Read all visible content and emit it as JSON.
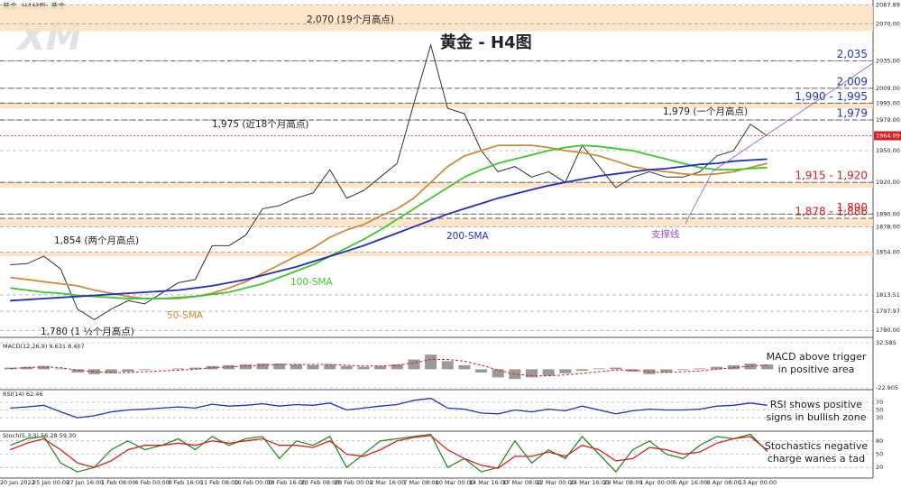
{
  "chart_data": [
    {
      "type": "line",
      "header": "黄金, H4分析: 黄金",
      "logo": "XM",
      "title": "黄金 - H4图",
      "categories": [
        "20 Jan 2022",
        null,
        "25 Jan 00:00",
        null,
        "27 Jan 16:00",
        null,
        "1 Feb 08:00",
        null,
        "4 Feb 00:00",
        null,
        "8 Feb 16:00",
        null,
        "11 Feb 08:00",
        null,
        "16 Feb 00:00",
        null,
        "18 Feb 16:00",
        null,
        "23 Feb 08:00",
        null,
        "28 Feb 00:00",
        null,
        "2 Mar 16:00",
        null,
        "7 Mar 08:00",
        null,
        "10 Mar 00:00",
        null,
        "14 Mar 16:00",
        null,
        "17 Mar 08:00",
        null,
        "22 Mar 00:00",
        null,
        "24 Mar 16:00",
        null,
        "29 Mar 08:00",
        null,
        "1 Apr 00:00",
        null,
        "5 Apr 16:00",
        null,
        "8 Apr 08:00",
        null,
        "13 Apr 00:00",
        null
      ],
      "series": [
        {
          "color": "#333333",
          "values": [
            1842,
            1843,
            1850,
            1838,
            1800,
            1790,
            1800,
            1808,
            1805,
            1815,
            1825,
            1828,
            1860,
            1860,
            1870,
            1895,
            1898,
            1905,
            1910,
            1932,
            1905,
            1912,
            1925,
            1938,
            1995,
            2050,
            1990,
            1985,
            1950,
            1930,
            1935,
            1925,
            1930,
            1920,
            1955,
            1935,
            1915,
            1925,
            1930,
            1925,
            1925,
            1930,
            1945,
            1950,
            1975,
            1964
          ]
        },
        {
          "name": "50-SMA",
          "color": "#d08a3a",
          "values": [
            1830,
            1828,
            1826,
            1824,
            1822,
            1818,
            1815,
            1812,
            1810,
            1810,
            1810,
            1812,
            1815,
            1820,
            1826,
            1834,
            1842,
            1850,
            1858,
            1868,
            1875,
            1880,
            1888,
            1895,
            1905,
            1920,
            1935,
            1945,
            1950,
            1955,
            1955,
            1955,
            1953,
            1950,
            1948,
            1945,
            1940,
            1935,
            1932,
            1930,
            1928,
            1927,
            1928,
            1930,
            1934,
            1938
          ]
        },
        {
          "name": "100-SMA",
          "color": "#3fc72e",
          "values": [
            1820,
            1818,
            1816,
            1815,
            1813,
            1812,
            1811,
            1810,
            1810,
            1810,
            1811,
            1812,
            1814,
            1816,
            1820,
            1824,
            1830,
            1836,
            1842,
            1850,
            1858,
            1866,
            1875,
            1885,
            1895,
            1905,
            1915,
            1925,
            1932,
            1938,
            1942,
            1946,
            1950,
            1953,
            1955,
            1954,
            1952,
            1950,
            1946,
            1942,
            1938,
            1934,
            1932,
            1932,
            1933,
            1934
          ]
        },
        {
          "name": "200-SMA",
          "color": "#1f2fbf",
          "values": [
            1808,
            1809,
            1810,
            1811,
            1812,
            1813,
            1814,
            1815,
            1816,
            1817,
            1818,
            1820,
            1822,
            1825,
            1828,
            1832,
            1836,
            1840,
            1845,
            1850,
            1855,
            1860,
            1866,
            1872,
            1878,
            1884,
            1890,
            1895,
            1900,
            1905,
            1909,
            1913,
            1917,
            1920,
            1923,
            1926,
            1928,
            1930,
            1932,
            1933,
            1935,
            1937,
            1938,
            1940,
            1941,
            1942
          ]
        }
      ],
      "ylim": [
        1775,
        2090
      ],
      "yticks": [
        2087.89,
        {
          "value": 2070,
          "label": "2070.00"
        },
        {
          "value": 2035,
          "label": "2035.00"
        },
        {
          "value": 2009,
          "label": "2009.00"
        },
        {
          "value": 1995,
          "label": "1995.00"
        },
        {
          "value": 1979,
          "label": "1979.00"
        },
        {
          "value": 1950,
          "label": "1950.00"
        },
        {
          "value": 1920,
          "label": "1920.00"
        },
        {
          "value": 1890,
          "label": "1890.00"
        },
        {
          "value": 1878,
          "label": "1878.00"
        },
        {
          "value": 1854,
          "label": "1854.00"
        },
        1813.51,
        1797.97,
        {
          "value": 1780,
          "label": "1780.00"
        }
      ],
      "last": {
        "value": 1964.09,
        "label": "1964.09"
      },
      "zones": [
        [
          2063,
          2087
        ],
        [
          1990,
          1995
        ],
        [
          1915,
          1920
        ],
        [
          1878,
          1886
        ],
        [
          1850,
          1854
        ]
      ],
      "levels": [
        {
          "label": "2,035",
          "value": 2035,
          "color": "#2233cc"
        },
        {
          "label": "2,009",
          "value": 2009,
          "color": "#2233cc"
        },
        {
          "label": "1,990 - 1,995",
          "low": 1990,
          "high": 1995,
          "color": "#2233cc"
        },
        {
          "label": "1,979",
          "value": 1979,
          "color": "#2233cc"
        },
        {
          "label": "1,915 - 1,920",
          "low": 1915,
          "high": 1920,
          "color": "#d62020"
        },
        {
          "label": "1,890",
          "value": 1890,
          "color": "#d62020"
        },
        {
          "label": "1,878 - 1,886",
          "low": 1878,
          "high": 1886,
          "color": "#d62020"
        }
      ],
      "annotations": [
        {
          "text": "2,070 (19个月高点)",
          "color": "#222222"
        },
        {
          "text": "1,975 (近18个月高点)",
          "color": "#222222"
        },
        {
          "text": "1,979 (一个月高点)",
          "color": "#222222"
        },
        {
          "text": "1,854 (两个月高点)",
          "color": "#222222"
        },
        {
          "text": "1,780 (1 ½个月高点)",
          "color": "#222222"
        },
        {
          "text": "200-SMA",
          "color": "#1f2fbf"
        },
        {
          "text": "100-SMA",
          "color": "#3fc72e"
        },
        {
          "text": "50-SMA",
          "color": "#d08a3a"
        },
        {
          "text": "支撑线",
          "color": "#9a55c8"
        }
      ]
    },
    {
      "type": "bar",
      "label": "MACD(12,26,9) 9.631 8.407",
      "comment": [
        "MACD above trigger",
        "in positive area"
      ],
      "ylim": [
        -22.905,
        32.585
      ],
      "yticks": [
        32.585,
        -22.905
      ],
      "series": [
        {
          "color": "#999999",
          "values": [
            2,
            3,
            4,
            1,
            -4,
            -6,
            -5,
            -3,
            -1,
            0,
            1,
            2,
            4,
            5,
            6,
            7,
            7,
            6,
            5,
            6,
            4,
            3,
            4,
            6,
            12,
            18,
            10,
            5,
            -4,
            -10,
            -12,
            -10,
            -8,
            -5,
            -2,
            1,
            2,
            -3,
            -6,
            -4,
            -1,
            1,
            3,
            5,
            7,
            6
          ]
        },
        {
          "color": "#d62020",
          "values": [
            1,
            2,
            3,
            2,
            -1,
            -3,
            -4,
            -4,
            -3,
            -2,
            -1,
            0,
            2,
            3,
            4,
            5,
            6,
            6,
            6,
            6,
            5,
            4,
            4,
            5,
            8,
            12,
            12,
            10,
            5,
            -1,
            -6,
            -8,
            -8,
            -7,
            -5,
            -3,
            -1,
            -1,
            -3,
            -4,
            -3,
            -2,
            0,
            2,
            4,
            5
          ]
        }
      ]
    },
    {
      "type": "line",
      "label": "RSI(14) 62.46",
      "comment": [
        "RSI shows positive",
        "signs in bullish zone"
      ],
      "ylim": [
        0,
        100
      ],
      "yticks": [
        70,
        50,
        30
      ],
      "series": [
        {
          "color": "#1f2fbf",
          "values": [
            55,
            58,
            62,
            45,
            30,
            35,
            45,
            50,
            52,
            55,
            58,
            55,
            65,
            60,
            62,
            66,
            60,
            64,
            62,
            68,
            50,
            55,
            60,
            64,
            75,
            80,
            55,
            52,
            42,
            40,
            50,
            45,
            52,
            48,
            60,
            50,
            40,
            48,
            52,
            50,
            50,
            52,
            60,
            62,
            68,
            62
          ]
        }
      ]
    },
    {
      "type": "line",
      "label": "Stoch(5,3,3) 56.28 59.30",
      "comment": [
        "Stochastics negative",
        "charge wanes a tad"
      ],
      "ylim": [
        0,
        100
      ],
      "yticks": [
        80,
        50,
        20
      ],
      "series": [
        {
          "color": "#2a8a2a",
          "values": [
            70,
            85,
            90,
            30,
            10,
            20,
            60,
            80,
            60,
            70,
            85,
            60,
            90,
            70,
            85,
            90,
            40,
            80,
            70,
            90,
            20,
            50,
            80,
            85,
            90,
            95,
            20,
            40,
            10,
            20,
            80,
            30,
            60,
            40,
            90,
            50,
            10,
            60,
            80,
            50,
            40,
            70,
            90,
            85,
            95,
            56
          ]
        },
        {
          "color": "#d62020",
          "values": [
            60,
            75,
            85,
            60,
            30,
            20,
            35,
            60,
            70,
            70,
            75,
            70,
            80,
            75,
            80,
            85,
            70,
            70,
            65,
            80,
            50,
            45,
            60,
            80,
            88,
            92,
            60,
            40,
            25,
            18,
            45,
            45,
            55,
            45,
            70,
            60,
            35,
            40,
            65,
            60,
            50,
            55,
            75,
            85,
            90,
            59
          ]
        }
      ]
    }
  ]
}
